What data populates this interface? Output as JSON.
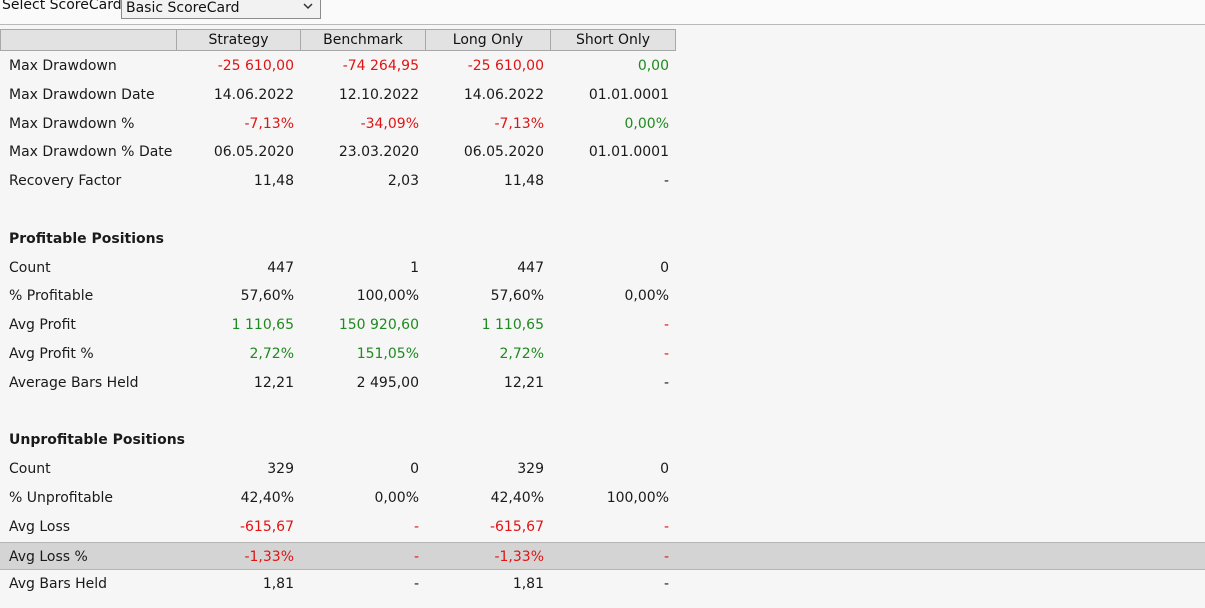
{
  "selector": {
    "label": "Select ScoreCard:",
    "value": "Basic ScoreCard"
  },
  "colors": {
    "negative": "#e01414",
    "positive": "#1f8a1f",
    "neutral": "#1a1a1a"
  },
  "columns": [
    "Strategy",
    "Benchmark",
    "Long Only",
    "Short Only"
  ],
  "rows": [
    {
      "label": "Max Drawdown",
      "values": [
        "-25 610,00",
        "-74 264,95",
        "-25 610,00",
        "0,00"
      ],
      "styles": [
        "neg",
        "neg",
        "neg",
        "pos"
      ]
    },
    {
      "label": "Max Drawdown Date",
      "values": [
        "14.06.2022",
        "12.10.2022",
        "14.06.2022",
        "01.01.0001"
      ],
      "styles": [
        "",
        "",
        "",
        ""
      ]
    },
    {
      "label": "Max Drawdown %",
      "values": [
        "-7,13%",
        "-34,09%",
        "-7,13%",
        "0,00%"
      ],
      "styles": [
        "neg",
        "neg",
        "neg",
        "pos"
      ]
    },
    {
      "label": "Max Drawdown % Date",
      "values": [
        "06.05.2020",
        "23.03.2020",
        "06.05.2020",
        "01.01.0001"
      ],
      "styles": [
        "",
        "",
        "",
        ""
      ]
    },
    {
      "label": "Recovery Factor",
      "values": [
        "11,48",
        "2,03",
        "11,48",
        "-"
      ],
      "styles": [
        "",
        "",
        "",
        ""
      ]
    },
    {
      "label": "",
      "values": [
        "",
        "",
        "",
        ""
      ],
      "styles": [
        "",
        "",
        "",
        ""
      ]
    },
    {
      "label": "Profitable Positions",
      "section": true,
      "values": [
        "",
        "",
        "",
        ""
      ],
      "styles": [
        "",
        "",
        "",
        ""
      ]
    },
    {
      "label": "Count",
      "values": [
        "447",
        "1",
        "447",
        "0"
      ],
      "styles": [
        "",
        "",
        "",
        ""
      ]
    },
    {
      "label": "% Profitable",
      "values": [
        "57,60%",
        "100,00%",
        "57,60%",
        "0,00%"
      ],
      "styles": [
        "",
        "",
        "",
        ""
      ]
    },
    {
      "label": "Avg Profit",
      "values": [
        "1 110,65",
        "150 920,60",
        "1 110,65",
        "-"
      ],
      "styles": [
        "pos",
        "pos",
        "pos",
        "neg"
      ]
    },
    {
      "label": "Avg Profit %",
      "values": [
        "2,72%",
        "151,05%",
        "2,72%",
        "-"
      ],
      "styles": [
        "pos",
        "pos",
        "pos",
        "neg"
      ]
    },
    {
      "label": "Average Bars Held",
      "values": [
        "12,21",
        "2 495,00",
        "12,21",
        "-"
      ],
      "styles": [
        "",
        "",
        "",
        ""
      ]
    },
    {
      "label": "",
      "values": [
        "",
        "",
        "",
        ""
      ],
      "styles": [
        "",
        "",
        "",
        ""
      ]
    },
    {
      "label": "Unprofitable Positions",
      "section": true,
      "values": [
        "",
        "",
        "",
        ""
      ],
      "styles": [
        "",
        "",
        "",
        ""
      ]
    },
    {
      "label": "Count",
      "values": [
        "329",
        "0",
        "329",
        "0"
      ],
      "styles": [
        "",
        "",
        "",
        ""
      ]
    },
    {
      "label": "% Unprofitable",
      "values": [
        "42,40%",
        "0,00%",
        "42,40%",
        "100,00%"
      ],
      "styles": [
        "",
        "",
        "",
        ""
      ]
    },
    {
      "label": "Avg Loss",
      "values": [
        "-615,67",
        "-",
        "-615,67",
        "-"
      ],
      "styles": [
        "neg",
        "neg",
        "neg",
        "neg"
      ]
    },
    {
      "label": "Avg Loss %",
      "values": [
        "-1,33%",
        "-",
        "-1,33%",
        "-"
      ],
      "styles": [
        "neg",
        "neg",
        "neg",
        "neg"
      ],
      "selected": true
    },
    {
      "label": "Avg Bars Held",
      "values": [
        "1,81",
        "-",
        "1,81",
        "-"
      ],
      "styles": [
        "",
        "",
        "",
        ""
      ]
    }
  ]
}
